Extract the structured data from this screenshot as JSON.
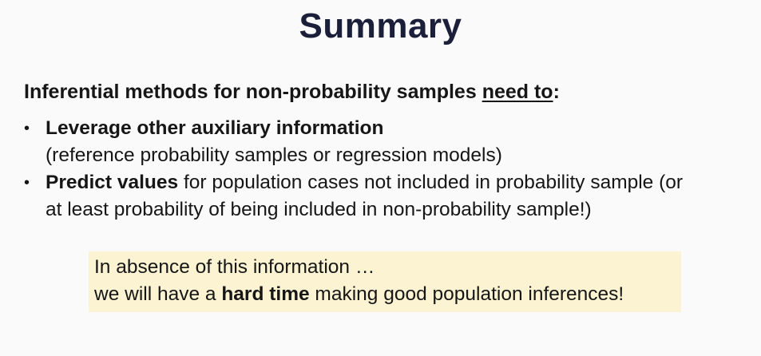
{
  "slide": {
    "title": "Summary",
    "intro": {
      "prefix": "Inferential methods for non-probability samples ",
      "underlined": "need to",
      "suffix": ":"
    },
    "bullets": [
      {
        "bold": "Leverage other auxiliary information",
        "rest": "",
        "line2": "(reference probability samples or regression models)"
      },
      {
        "bold": "Predict values",
        "rest": " for population cases not included in probability sample (or",
        "line2": "at least probability of being included in non-probability sample!)"
      }
    ],
    "bullet_symbol": "•",
    "callout": {
      "line1": "In absence of this information …",
      "line2_prefix": "we will have a ",
      "line2_bold": "hard time",
      "line2_suffix": " making good population inferences!",
      "background": "#fbf3d2"
    },
    "colors": {
      "title": "#1b1f3a",
      "text": "#161616",
      "background": "#fafafa"
    }
  }
}
